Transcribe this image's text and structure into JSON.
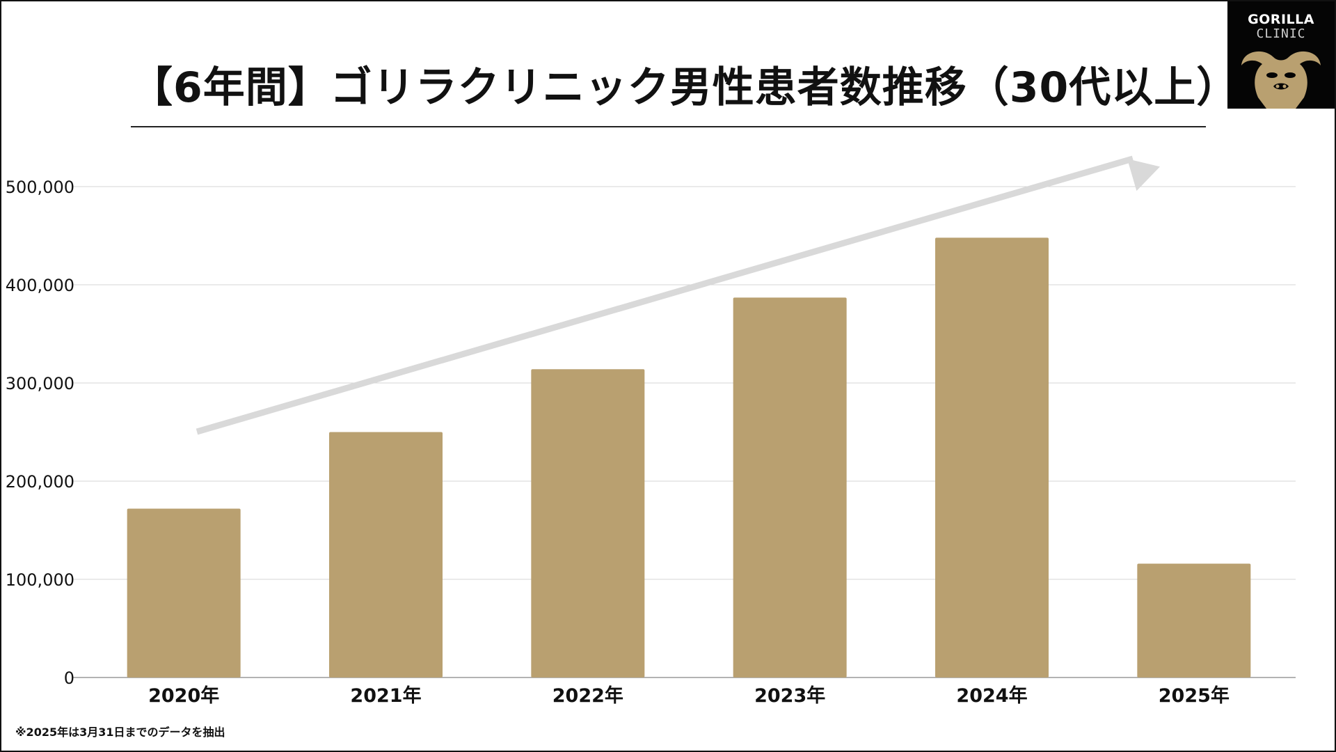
{
  "title": "【6年間】ゴリラクリニック男性患者数推移（30代以上）",
  "logo": {
    "line1": "GORILLA",
    "line2": "CLINIC",
    "gold": "#b9a070"
  },
  "footnote": "※2025年は3月31日までのデータを抽出",
  "chart_data": {
    "type": "bar",
    "categories": [
      "2020年",
      "2021年",
      "2022年",
      "2023年",
      "2024年",
      "2025年"
    ],
    "values": [
      172000,
      250000,
      314000,
      387000,
      448000,
      116000
    ],
    "ylim": [
      0,
      500000
    ],
    "yticks": [
      0,
      100000,
      200000,
      300000,
      400000,
      500000
    ],
    "ytick_labels": [
      "0",
      "100,000",
      "200,000",
      "300,000",
      "400,000",
      "500,000"
    ],
    "grid": true,
    "bar_color": "#b9a070",
    "trend_arrow_color": "#d9d9d9"
  }
}
